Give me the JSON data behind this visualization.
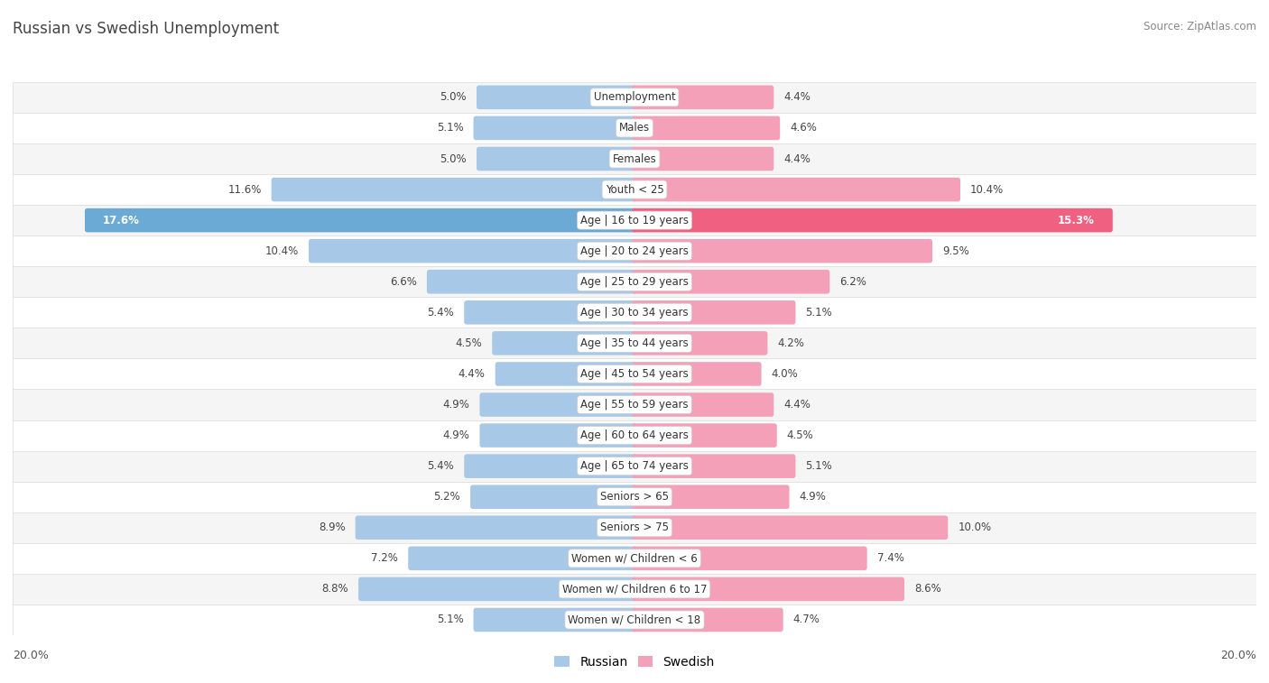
{
  "title": "Russian vs Swedish Unemployment",
  "source": "Source: ZipAtlas.com",
  "categories": [
    "Unemployment",
    "Males",
    "Females",
    "Youth < 25",
    "Age | 16 to 19 years",
    "Age | 20 to 24 years",
    "Age | 25 to 29 years",
    "Age | 30 to 34 years",
    "Age | 35 to 44 years",
    "Age | 45 to 54 years",
    "Age | 55 to 59 years",
    "Age | 60 to 64 years",
    "Age | 65 to 74 years",
    "Seniors > 65",
    "Seniors > 75",
    "Women w/ Children < 6",
    "Women w/ Children 6 to 17",
    "Women w/ Children < 18"
  ],
  "russian": [
    5.0,
    5.1,
    5.0,
    11.6,
    17.6,
    10.4,
    6.6,
    5.4,
    4.5,
    4.4,
    4.9,
    4.9,
    5.4,
    5.2,
    8.9,
    7.2,
    8.8,
    5.1
  ],
  "swedish": [
    4.4,
    4.6,
    4.4,
    10.4,
    15.3,
    9.5,
    6.2,
    5.1,
    4.2,
    4.0,
    4.4,
    4.5,
    5.1,
    4.9,
    10.0,
    7.4,
    8.6,
    4.7
  ],
  "russian_color": "#a8c8e8",
  "swedish_color": "#f4a0b8",
  "russian_highlight_color": "#6aaad4",
  "swedish_highlight_color": "#f06080",
  "highlight_rows": [
    4
  ],
  "axis_max": 20.0,
  "row_bg_colors": [
    "#f5f5f5",
    "#ffffff"
  ],
  "row_border_color": "#dddddd",
  "legend_russian": "Russian",
  "legend_swedish": "Swedish",
  "label_fontsize": 8.5,
  "category_fontsize": 8.5,
  "title_fontsize": 12,
  "source_fontsize": 8.5,
  "value_color": "#444444",
  "title_color": "#444444",
  "source_color": "#888888",
  "axis_label_color": "#555555",
  "category_label_color": "#333333"
}
